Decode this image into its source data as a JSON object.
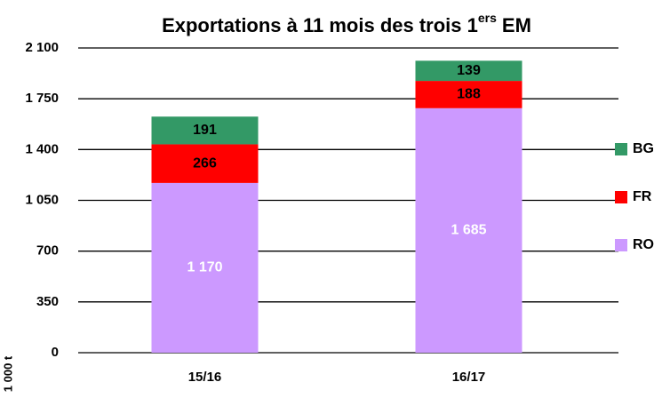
{
  "chart_data": {
    "type": "stacked_bar",
    "title": {
      "text": "Exportations à 11 mois des trois 1",
      "superscript": "ers",
      "suffix": "EM"
    },
    "y_label": "1 000 t",
    "categories": [
      "15/16",
      "16/17"
    ],
    "series": [
      {
        "name": "RO",
        "color": "#cc99ff",
        "values": [
          1170,
          1685
        ],
        "value_labels": [
          "1 170",
          "1 685"
        ]
      },
      {
        "name": "FR",
        "color": "#ff0000",
        "values": [
          266,
          188
        ]
      },
      {
        "name": "BG",
        "color": "#339966",
        "values": [
          191,
          139
        ]
      }
    ],
    "ylim": [
      0,
      2100
    ],
    "yticks": [
      0,
      350,
      700,
      {
        "value": 1050,
        "label": "1 050"
      },
      {
        "value": 1400,
        "label": "1 400"
      },
      {
        "value": 1750,
        "label": "1 750"
      },
      {
        "value": 2100,
        "label": "2 100"
      }
    ],
    "grid": true,
    "legend": "right"
  }
}
